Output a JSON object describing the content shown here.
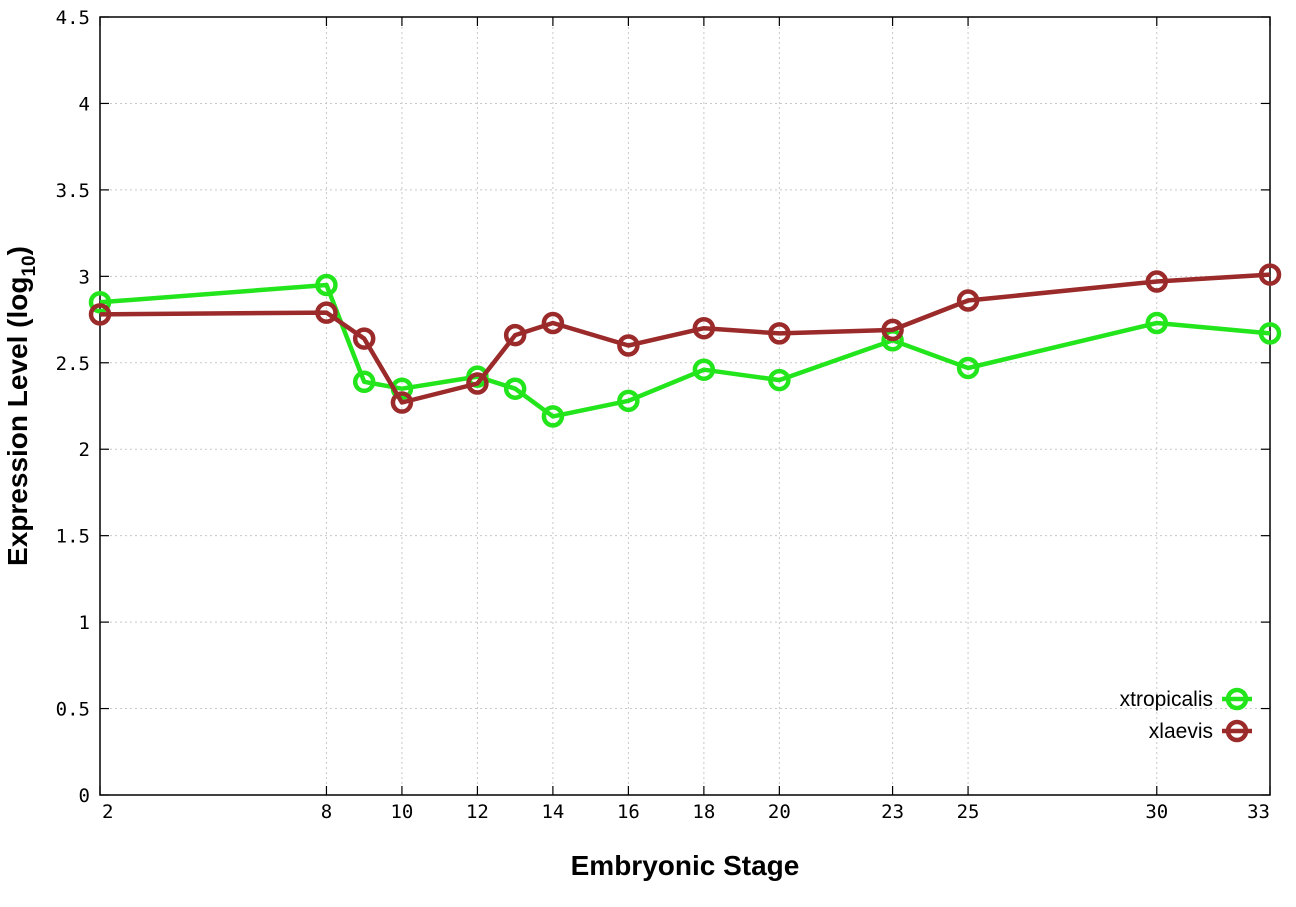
{
  "chart_data": {
    "type": "line",
    "title": "",
    "xlabel": "Embryonic Stage",
    "ylabel": "Expression Level (log",
    "ylabel_subscript": "10",
    "ylabel_close": ")",
    "xlim": [
      2,
      33
    ],
    "ylim": [
      0,
      4.5
    ],
    "x_ticks": [
      2,
      8,
      10,
      12,
      14,
      16,
      18,
      20,
      23,
      25,
      30,
      33
    ],
    "y_ticks": [
      0,
      0.5,
      1,
      1.5,
      2,
      2.5,
      3,
      3.5,
      4,
      4.5
    ],
    "grid": true,
    "legend_position": "bottom-right",
    "series": [
      {
        "name": "xtropicalis",
        "color": "#22e51c",
        "x": [
          2,
          8,
          9,
          10,
          12,
          13,
          14,
          16,
          18,
          20,
          23,
          25,
          30,
          33
        ],
        "y": [
          2.85,
          2.95,
          2.39,
          2.35,
          2.42,
          2.35,
          2.19,
          2.28,
          2.46,
          2.4,
          2.63,
          2.47,
          2.73,
          2.67
        ]
      },
      {
        "name": "xlaevis",
        "color": "#9b2a2a",
        "x": [
          2,
          8,
          9,
          10,
          12,
          13,
          14,
          16,
          18,
          20,
          23,
          25,
          30,
          33
        ],
        "y": [
          2.78,
          2.79,
          2.64,
          2.27,
          2.38,
          2.66,
          2.73,
          2.6,
          2.7,
          2.67,
          2.69,
          2.86,
          2.97,
          3.01
        ]
      }
    ]
  }
}
